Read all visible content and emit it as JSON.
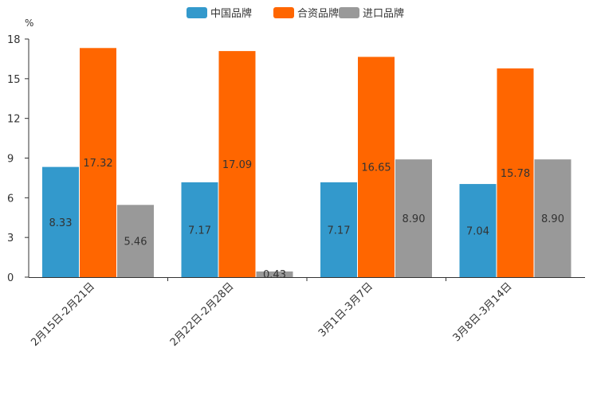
{
  "chart_data": {
    "type": "bar",
    "title": "",
    "xlabel": "",
    "ylabel": "%",
    "ylim": [
      0,
      18
    ],
    "yticks": [
      0,
      3,
      6,
      9,
      12,
      15,
      18
    ],
    "ytick_labels": [
      "0",
      "3",
      "6",
      "9",
      "12",
      "15",
      "18"
    ],
    "grid": false,
    "legend_position": "top-center",
    "categories": [
      "2月15日-2月21日",
      "2月22日-2月28日",
      "3月1日-3月7日",
      "3月8日-3月14日"
    ],
    "series": [
      {
        "name": "中国品牌",
        "color": "#3399cc",
        "values": [
          8.33,
          7.17,
          7.17,
          7.04
        ],
        "labels": [
          "8.33",
          "7.17",
          "7.17",
          "7.04"
        ]
      },
      {
        "name": "合资品牌",
        "color": "#ff6600",
        "values": [
          17.32,
          17.09,
          16.65,
          15.78
        ],
        "labels": [
          "17.32",
          "17.09",
          "16.65",
          "15.78"
        ]
      },
      {
        "name": "进口品牌",
        "color": "#999999",
        "values": [
          5.46,
          0.43,
          8.9,
          8.9
        ],
        "labels": [
          "5.46",
          "0.43",
          "8.90",
          "8.90"
        ]
      }
    ]
  }
}
